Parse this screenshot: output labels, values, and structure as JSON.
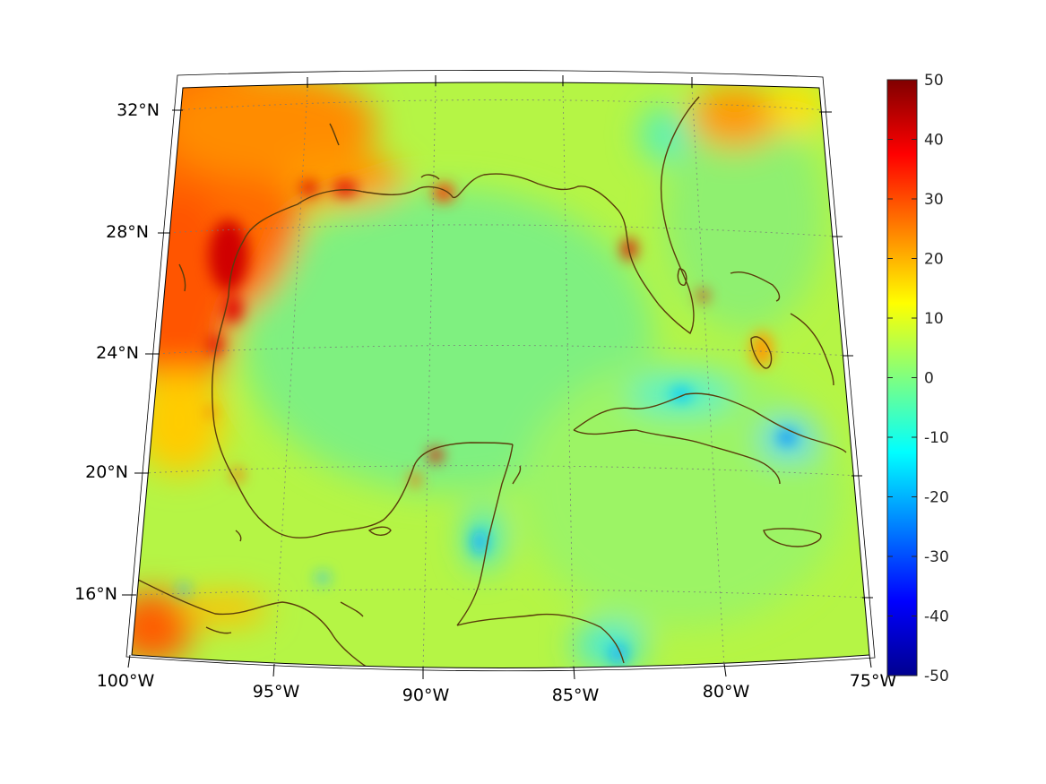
{
  "map": {
    "region": "Gulf of Mexico and Caribbean",
    "projection": "conic",
    "lat_labels": [
      "32°N",
      "28°N",
      "24°N",
      "20°N",
      "16°N"
    ],
    "lon_labels": [
      "100°W",
      "95°W",
      "90°W",
      "85°W",
      "80°W",
      "75°W"
    ],
    "grid": true,
    "grid_style": "dotted",
    "coastline_color": "#5a3d0c"
  },
  "colorbar": {
    "colormap": "jet",
    "min": -50,
    "max": 50,
    "tick_labels": [
      "50",
      "40",
      "30",
      "20",
      "10",
      "0",
      "-10",
      "-20",
      "-30",
      "-40",
      "-50"
    ],
    "location": "right"
  },
  "field": {
    "background_value": 5,
    "hotspots": [
      {
        "area": "Texas inland / northwest corner",
        "value": 30
      },
      {
        "area": "Texas coast near 27°N",
        "value": 38
      },
      {
        "area": "Louisiana coast",
        "value": 30
      },
      {
        "area": "Florida east coast north",
        "value": 25
      },
      {
        "area": "southwest corner near 15°N 100°W",
        "value": 35
      },
      {
        "area": "Bahamas / Andros",
        "value": 18
      },
      {
        "area": "Cuba southeast",
        "value": -15
      },
      {
        "area": "Belize coast",
        "value": -12
      },
      {
        "area": "Nicaragua coast",
        "value": -12
      }
    ]
  }
}
